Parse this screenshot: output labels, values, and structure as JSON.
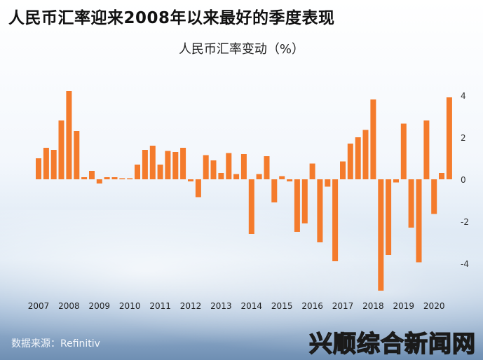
{
  "header": {
    "title": "人民币汇率迎来2008年以来最好的季度表现",
    "subtitle": "人民币汇率变动（%）"
  },
  "footer": {
    "source": "数据来源：Refinitiv",
    "watermark": "兴顺综合新闻网"
  },
  "chart_data": {
    "type": "bar",
    "title": "人民币汇率迎来2008年以来最好的季度表现",
    "ylabel": "人民币汇率变动（%）",
    "ylim": [
      -5.2,
      4.3
    ],
    "yticks": [
      4,
      2,
      0,
      -2,
      -4
    ],
    "year_labels": [
      "2007",
      "2008",
      "2009",
      "2010",
      "2011",
      "2012",
      "2013",
      "2014",
      "2015",
      "2016",
      "2017",
      "2018",
      "2019",
      "2020"
    ],
    "color": "#f47b2c",
    "grid": false,
    "values": [
      1.0,
      1.5,
      1.4,
      2.8,
      4.2,
      2.3,
      0.1,
      0.4,
      -0.2,
      0.1,
      0.1,
      0.05,
      0.05,
      0.7,
      1.4,
      1.6,
      0.7,
      1.35,
      1.3,
      1.5,
      -0.1,
      -0.85,
      1.15,
      0.9,
      0.3,
      1.25,
      0.25,
      1.2,
      -2.6,
      0.25,
      1.1,
      -1.1,
      0.15,
      -0.1,
      -2.5,
      -2.1,
      0.75,
      -3.0,
      -0.35,
      -3.9,
      0.85,
      1.7,
      2.0,
      2.35,
      3.8,
      -5.3,
      -3.6,
      -0.15,
      2.65,
      -2.3,
      -3.95,
      2.8,
      -1.65,
      0.3,
      3.9
    ]
  }
}
